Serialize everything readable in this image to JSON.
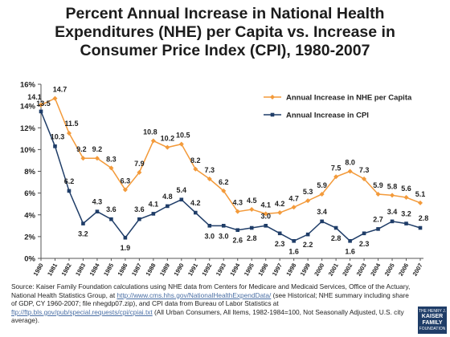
{
  "title_lines": [
    "Percent Annual Increase in National Health",
    "Expenditures (NHE) per Capita vs. Increase in",
    "Consumer Price Index (CPI), 1980-2007"
  ],
  "chart_data": {
    "type": "line",
    "categories": [
      "1980",
      "1981",
      "1982",
      "1983",
      "1984",
      "1985",
      "1986",
      "1987",
      "1988",
      "1989",
      "1990",
      "1991",
      "1992",
      "1993",
      "1994",
      "1995",
      "1996",
      "1997",
      "1998",
      "1999",
      "2000",
      "2001",
      "2002",
      "2003",
      "2004",
      "2005",
      "2006",
      "2007"
    ],
    "ylim": [
      0,
      16
    ],
    "yticks": [
      0,
      2,
      4,
      6,
      8,
      10,
      12,
      14,
      16
    ],
    "ytick_labels": [
      "0%",
      "2%",
      "4%",
      "6%",
      "8%",
      "10%",
      "12%",
      "14%",
      "16%"
    ],
    "grid": false,
    "legend_position": "top-right",
    "series": [
      {
        "name": "Annual Increase in NHE per Capita",
        "color": "#f39a3a",
        "marker": "diamond",
        "values": [
          14.1,
          14.7,
          11.5,
          9.2,
          9.2,
          8.3,
          6.3,
          7.9,
          10.8,
          10.2,
          10.5,
          8.2,
          7.3,
          6.2,
          4.3,
          4.5,
          4.1,
          4.2,
          4.7,
          5.3,
          5.9,
          7.5,
          8.0,
          7.3,
          5.9,
          5.8,
          5.6,
          5.1
        ],
        "labels": [
          "14.1",
          "14.7",
          "11.5",
          "9.2",
          "9.2",
          "8.3",
          "6.3",
          "7.9",
          "10.8",
          "10.2",
          "10.5",
          "8.2",
          "7.3",
          "6.2",
          "4.3",
          "4.5",
          "4.1",
          "4.2",
          "4.7",
          "5.3",
          "5.9",
          "7.5",
          "8.0",
          "7.3",
          "5.9",
          "5.8",
          "5.6",
          "5.1"
        ]
      },
      {
        "name": "Annual Increase in CPI",
        "color": "#1f3d68",
        "marker": "square",
        "values": [
          13.5,
          10.3,
          6.2,
          3.2,
          4.3,
          3.6,
          1.9,
          3.6,
          4.1,
          4.8,
          5.4,
          4.2,
          3.0,
          3.0,
          2.6,
          2.8,
          3.0,
          2.3,
          1.6,
          2.2,
          3.4,
          2.8,
          1.6,
          2.3,
          2.7,
          3.4,
          3.2,
          2.8
        ],
        "labels": [
          "13.5",
          "10.3",
          "6.2",
          "3.2",
          "4.3",
          "3.6",
          "1.9",
          "3.6",
          "4.1",
          "4.8",
          "5.4",
          "4.2",
          "3.0",
          "3.0",
          "2.6",
          "2.8",
          "3.0",
          "2.3",
          "1.6",
          "2.2",
          "3.4",
          "2.8",
          "1.6",
          "2.3",
          "2.7",
          "3.4",
          "3.2",
          "2.8"
        ]
      }
    ]
  },
  "source": {
    "part1": "Source: Kaiser Family Foundation calculations using NHE data from Centers for Medicare and Medicaid Services, Office of the Actuary, National Health Statistics Group, at ",
    "link1": "http://www.cms.hhs.gov/NationalHealthExpendData/",
    "part2": " (see Historical; NHE summary including share of GDP, CY 1960-2007; file nhegdp07.zip), and CPI data from Bureau of Labor Statistics at ",
    "link2": "ftp://ftp.bls.gov/pub/special.requests/cpi/cpiai.txt",
    "part3": " (All Urban Consumers, All Items, 1982-1984=100, Not Seasonally Adjusted, U.S. city average)."
  },
  "logo": {
    "line1": "THE HENRY J.",
    "line2": "KAISER",
    "line3": "FAMILY",
    "line4": "FOUNDATION"
  }
}
